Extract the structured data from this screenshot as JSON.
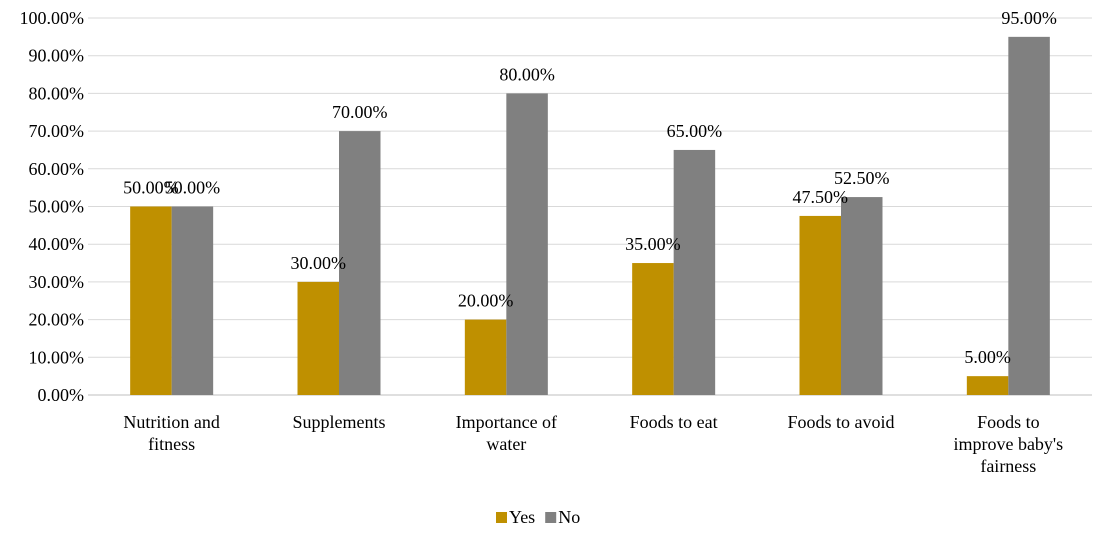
{
  "chart_data": {
    "type": "bar",
    "title": "",
    "xlabel": "",
    "ylabel": "",
    "ylim": [
      0,
      100
    ],
    "ytick_labels": [
      "0.00%",
      "10.00%",
      "20.00%",
      "30.00%",
      "40.00%",
      "50.00%",
      "60.00%",
      "70.00%",
      "80.00%",
      "90.00%",
      "100.00%"
    ],
    "grid": true,
    "legend_position": "bottom",
    "categories": [
      [
        "Nutrition and",
        "fitness"
      ],
      [
        "Supplements"
      ],
      [
        "Importance of",
        "water"
      ],
      [
        "Foods to eat"
      ],
      [
        "Foods to avoid"
      ],
      [
        "Foods to",
        "improve baby's",
        "fairness"
      ]
    ],
    "series": [
      {
        "name": "Yes",
        "color": "#bf9000",
        "values": [
          50.0,
          30.0,
          20.0,
          35.0,
          47.5,
          5.0
        ],
        "labels": [
          "50.00%",
          "30.00%",
          "20.00%",
          "35.00%",
          "47.50%",
          "5.00%"
        ]
      },
      {
        "name": "No",
        "color": "#808080",
        "values": [
          50.0,
          70.0,
          80.0,
          65.0,
          52.5,
          95.0
        ],
        "labels": [
          "50.00%",
          "70.00%",
          "80.00%",
          "65.00%",
          "52.50%",
          "95.00%"
        ]
      }
    ]
  }
}
